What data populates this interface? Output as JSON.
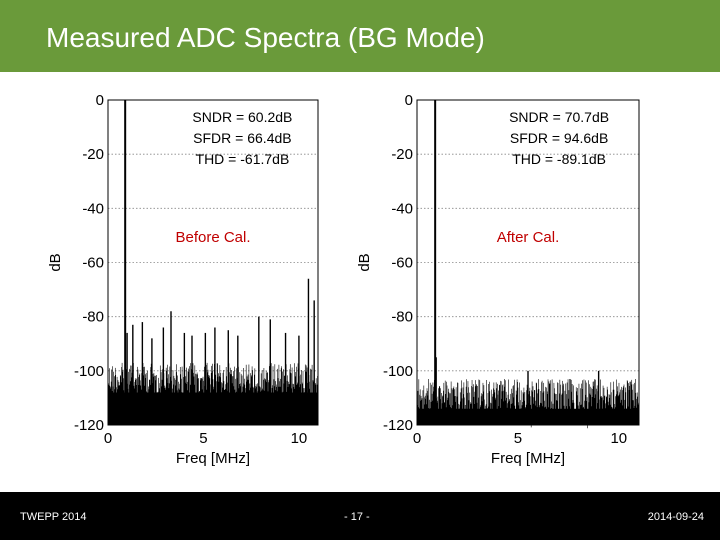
{
  "slide": {
    "title": "Measured ADC Spectra (BG Mode)",
    "footer_left": "TWEPP 2014",
    "footer_center": "- 17 -",
    "footer_right": "2014-09-24",
    "colors": {
      "header": "#6a9a3a",
      "footer": "#000000",
      "annotation": "#c00000",
      "trace": "#000000"
    }
  },
  "chart_data": [
    {
      "type": "line",
      "xlabel": "Freq [MHz]",
      "ylabel": "dB",
      "xlim": [
        0,
        11
      ],
      "ylim": [
        -120,
        0
      ],
      "xticks": [
        0,
        5,
        10
      ],
      "yticks": [
        0,
        -20,
        -40,
        -60,
        -80,
        -100,
        -120
      ],
      "grid": "horizontal dotted",
      "metrics": [
        "SNDR = 60.2dB",
        "SFDR = 66.4dB",
        "THD = -61.7dB"
      ],
      "label": "Before Cal.",
      "fundamental": {
        "x": 0.9,
        "y": 0
      },
      "noise_floor": -102,
      "spurs": [
        {
          "x": 1.0,
          "y": -86
        },
        {
          "x": 1.3,
          "y": -83
        },
        {
          "x": 1.8,
          "y": -82
        },
        {
          "x": 2.3,
          "y": -88
        },
        {
          "x": 2.9,
          "y": -84
        },
        {
          "x": 3.3,
          "y": -78
        },
        {
          "x": 4.0,
          "y": -86
        },
        {
          "x": 4.4,
          "y": -87
        },
        {
          "x": 5.1,
          "y": -86
        },
        {
          "x": 5.6,
          "y": -84
        },
        {
          "x": 6.3,
          "y": -85
        },
        {
          "x": 6.8,
          "y": -87
        },
        {
          "x": 7.9,
          "y": -80
        },
        {
          "x": 8.5,
          "y": -81
        },
        {
          "x": 9.3,
          "y": -86
        },
        {
          "x": 10.0,
          "y": -87
        },
        {
          "x": 10.5,
          "y": -66
        },
        {
          "x": 10.8,
          "y": -74
        }
      ]
    },
    {
      "type": "line",
      "xlabel": "Freq [MHz]",
      "ylabel": "dB",
      "xlim": [
        0,
        11
      ],
      "ylim": [
        -120,
        0
      ],
      "xticks": [
        0,
        5,
        10
      ],
      "yticks": [
        0,
        -20,
        -40,
        -60,
        -80,
        -100,
        -120
      ],
      "grid": "horizontal dotted",
      "metrics": [
        "SNDR = 70.7dB",
        "SFDR = 94.6dB",
        "THD = -89.1dB"
      ],
      "label": "After Cal.",
      "fundamental": {
        "x": 0.9,
        "y": 0
      },
      "noise_floor": -108,
      "spurs": [
        {
          "x": 0.95,
          "y": -95
        },
        {
          "x": 5.5,
          "y": -100
        },
        {
          "x": 9.0,
          "y": -100
        }
      ]
    }
  ]
}
